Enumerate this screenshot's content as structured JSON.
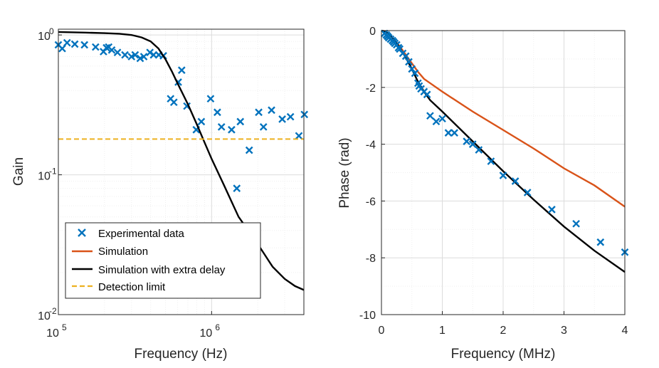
{
  "chart_data": [
    {
      "type": "line",
      "scale": {
        "x": "log",
        "y": "log"
      },
      "xlabel": "Frequency (Hz)",
      "ylabel": "Gain",
      "xlim": [
        100000,
        4000000
      ],
      "ylim": [
        0.01,
        1.1
      ],
      "x_ticks": [
        {
          "value": 100000,
          "base": "10",
          "exp": "5"
        },
        {
          "value": 1000000,
          "base": "10",
          "exp": "6"
        }
      ],
      "y_ticks": [
        {
          "value": 1,
          "label": "10",
          "exp": "0"
        },
        {
          "value": 0.1,
          "base": "10",
          "exp": "-1"
        },
        {
          "value": 0.01,
          "base": "10",
          "exp": "-2"
        }
      ],
      "grid": true,
      "legend": {
        "position": "bottom-left",
        "entries": [
          "Experimental data",
          "Simulation",
          "Simulation with extra delay",
          "Detection limit"
        ]
      },
      "colors": {
        "experimental": "#0072BD",
        "simulation": "#D95319",
        "extra_delay": "#000000",
        "limit": "#EDB120"
      },
      "series": [
        {
          "name": "Experimental data",
          "style": "marker-x",
          "x": [
            100000,
            106000,
            114000,
            128000,
            148000,
            175000,
            197000,
            206000,
            213000,
            223000,
            243000,
            272000,
            300000,
            317000,
            342000,
            361000,
            396000,
            418000,
            452000,
            484000,
            540000,
            567000,
            606000,
            638000,
            690000,
            794000,
            857000,
            985000,
            1090000,
            1160000,
            1350000,
            1460000,
            1540000,
            1760000,
            2030000,
            2180000,
            2460000,
            2890000,
            3270000,
            3710000,
            4030000
          ],
          "y": [
            0.85,
            0.8,
            0.88,
            0.86,
            0.85,
            0.82,
            0.76,
            0.81,
            0.82,
            0.78,
            0.75,
            0.72,
            0.7,
            0.72,
            0.68,
            0.7,
            0.75,
            0.72,
            0.72,
            0.71,
            0.35,
            0.33,
            0.46,
            0.56,
            0.31,
            0.21,
            0.24,
            0.35,
            0.28,
            0.22,
            0.21,
            0.08,
            0.24,
            0.15,
            0.28,
            0.22,
            0.29,
            0.25,
            0.26,
            0.19,
            0.27
          ]
        },
        {
          "name": "Simulation with extra delay",
          "style": "line",
          "x": [
            100000,
            150000,
            200000,
            250000,
            300000,
            350000,
            400000,
            450000,
            500000,
            550000,
            600000,
            700000,
            800000,
            900000,
            1000000,
            1200000,
            1500000,
            2000000,
            2500000,
            3000000,
            3500000,
            4000000
          ],
          "y": [
            1.05,
            1.04,
            1.03,
            1.02,
            1.0,
            0.96,
            0.9,
            0.8,
            0.67,
            0.55,
            0.45,
            0.32,
            0.23,
            0.17,
            0.13,
            0.085,
            0.05,
            0.032,
            0.022,
            0.018,
            0.016,
            0.015
          ]
        },
        {
          "name": "Detection limit",
          "style": "dashed",
          "x": [
            100000,
            4000000
          ],
          "y": [
            0.18,
            0.18
          ]
        }
      ]
    },
    {
      "type": "line",
      "xlabel": "Frequency (MHz)",
      "ylabel": "Phase (rad)",
      "xlim": [
        0,
        4
      ],
      "ylim": [
        -10,
        0
      ],
      "x_ticks": [
        0,
        1,
        2,
        3,
        4
      ],
      "y_ticks": [
        {
          "value": 0,
          "label": "0"
        },
        {
          "value": -2,
          "label": "-2"
        },
        {
          "value": -4,
          "label": "-4"
        },
        {
          "value": -6,
          "label": "-6"
        },
        {
          "value": -8,
          "label": "-8"
        },
        {
          "value": -10,
          "label": "-10"
        }
      ],
      "grid": true,
      "series": [
        {
          "name": "Experimental data",
          "style": "marker-x",
          "x": [
            0.05,
            0.08,
            0.1,
            0.12,
            0.15,
            0.18,
            0.2,
            0.22,
            0.25,
            0.28,
            0.3,
            0.35,
            0.4,
            0.45,
            0.5,
            0.55,
            0.6,
            0.62,
            0.65,
            0.7,
            0.75,
            0.8,
            0.9,
            1.0,
            1.1,
            1.2,
            1.4,
            1.5,
            1.6,
            1.8,
            2.0,
            2.2,
            2.4,
            2.8,
            3.2,
            3.6,
            4.0
          ],
          "y": [
            -0.1,
            -0.15,
            -0.2,
            -0.25,
            -0.3,
            -0.35,
            -0.4,
            -0.45,
            -0.5,
            -0.6,
            -0.65,
            -0.8,
            -0.9,
            -1.1,
            -1.35,
            -1.5,
            -1.85,
            -1.95,
            -2.05,
            -2.15,
            -2.25,
            -3.0,
            -3.2,
            -3.1,
            -3.6,
            -3.6,
            -3.9,
            -4.0,
            -4.2,
            -4.6,
            -5.1,
            -5.3,
            -5.7,
            -6.3,
            -6.8,
            -7.45,
            -7.8
          ]
        },
        {
          "name": "Simulation",
          "style": "line",
          "x": [
            0,
            0.05,
            0.1,
            0.15,
            0.2,
            0.3,
            0.4,
            0.5,
            0.6,
            0.7,
            0.8,
            1.0,
            1.5,
            2.0,
            2.5,
            3.0,
            3.5,
            4.0
          ],
          "y": [
            0,
            -0.02,
            -0.08,
            -0.18,
            -0.3,
            -0.55,
            -0.85,
            -1.15,
            -1.45,
            -1.7,
            -1.85,
            -2.15,
            -2.85,
            -3.5,
            -4.15,
            -4.85,
            -5.45,
            -6.2
          ]
        },
        {
          "name": "Simulation with extra delay",
          "style": "line",
          "x": [
            0,
            0.05,
            0.1,
            0.15,
            0.2,
            0.3,
            0.4,
            0.5,
            0.6,
            0.7,
            0.8,
            1.0,
            1.5,
            2.0,
            2.5,
            3.0,
            3.5,
            4.0
          ],
          "y": [
            0,
            -0.02,
            -0.08,
            -0.18,
            -0.3,
            -0.6,
            -0.95,
            -1.35,
            -1.8,
            -2.15,
            -2.45,
            -2.85,
            -3.9,
            -4.95,
            -5.95,
            -6.9,
            -7.75,
            -8.5
          ]
        }
      ]
    }
  ]
}
